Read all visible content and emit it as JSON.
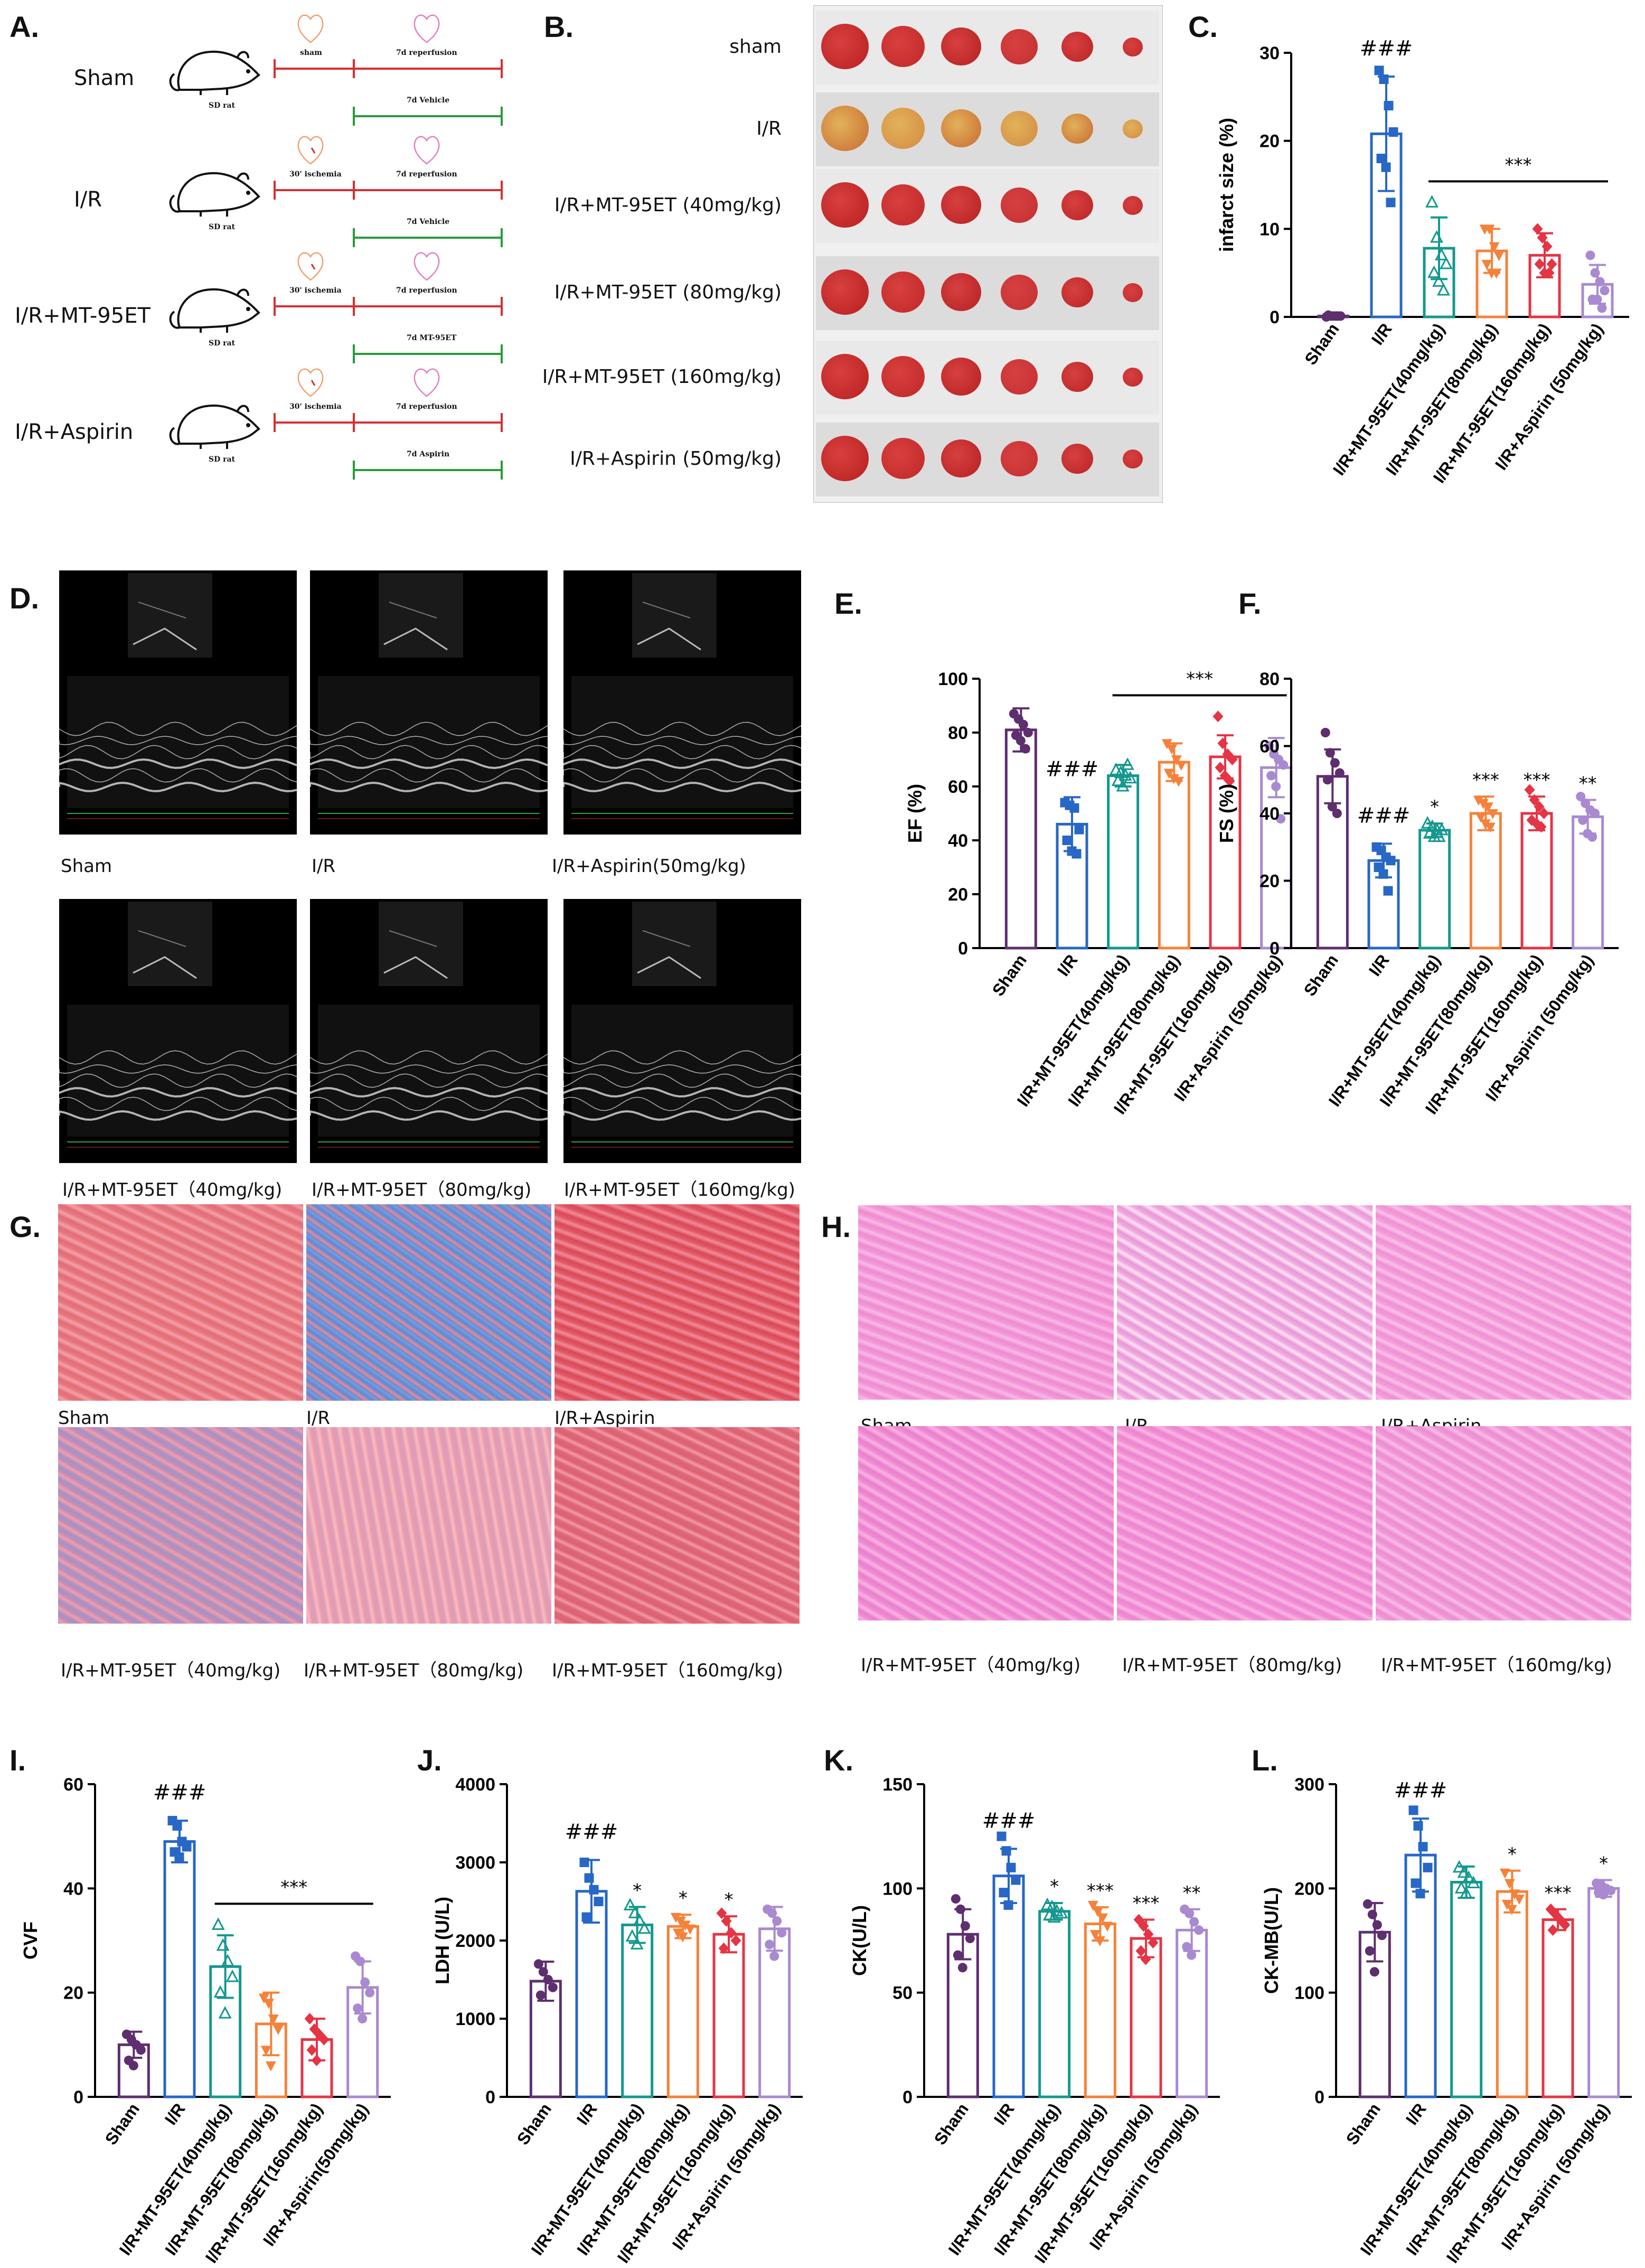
{
  "panel_letters": [
    "A.",
    "B.",
    "C.",
    "D.",
    "E.",
    "F.",
    "G.",
    "H.",
    "I.",
    "J.",
    "K.",
    "L."
  ],
  "panel_a": {
    "rows": [
      {
        "group": "Sham",
        "stage1": "sham",
        "stage2": "7d reperfusion",
        "treatment": "7d Vehicle",
        "rat": "SD rat"
      },
      {
        "group": "I/R",
        "stage1": "30' ischemia",
        "stage2": "7d reperfusion",
        "treatment": "7d Vehicle",
        "rat": "SD rat"
      },
      {
        "group": "I/R+MT-95ET",
        "stage1": "30' ischemia",
        "stage2": "7d reperfusion",
        "treatment": "7d MT-95ET",
        "rat": "SD rat"
      },
      {
        "group": "I/R+Aspirin",
        "stage1": "30' ischemia",
        "stage2": "7d reperfusion",
        "treatment": "7d Aspirin",
        "rat": "SD rat"
      }
    ]
  },
  "panel_b": {
    "labels": [
      "sham",
      "I/R",
      "I/R+MT-95ET (40mg/kg)",
      "I/R+MT-95ET (80mg/kg)",
      "I/R+MT-95ET (160mg/kg)",
      "I/R+Aspirin (50mg/kg)"
    ]
  },
  "panel_d": {
    "labels": [
      "Sham",
      "I/R",
      "I/R+Aspirin(50mg/kg)",
      "I/R+MT-95ET（40mg/kg)",
      "I/R+MT-95ET（80mg/kg)",
      "I/R+MT-95ET（160mg/kg)"
    ]
  },
  "panel_g": {
    "labels": [
      "Sham",
      "I/R",
      "I/R+Aspirin",
      "I/R+MT-95ET（40mg/kg)",
      "I/R+MT-95ET（80mg/kg)",
      "I/R+MT-95ET（160mg/kg)"
    ]
  },
  "panel_h": {
    "labels": [
      "Sham",
      "I/R",
      "I/R+Aspirin",
      "I/R+MT-95ET（40mg/kg)",
      "I/R+MT-95ET（80mg/kg)",
      "I/R+MT-95ET（160mg/kg)"
    ]
  },
  "colors": {
    "Sham": "#5e2e6e",
    "I/R": "#2767c6",
    "MT40": "#14988e",
    "MT80": "#f5823a",
    "MT160": "#e53444",
    "Aspirin": "#a98ad0"
  },
  "chart_data": [
    {
      "id": "C",
      "type": "bar",
      "ylabel": "infarct size (%)",
      "ylim": [
        0,
        30
      ],
      "yticks": [
        0,
        10,
        20,
        30
      ],
      "categories": [
        "Sham",
        "I/R",
        "I/R+MT-95ET(40mg/kg)",
        "I/R+MT-95ET(80mg/kg)",
        "I/R+MT-95ET(160mg/kg)",
        "I/R+Aspirin (50mg/kg)"
      ],
      "values": [
        0.1,
        20.8,
        7.8,
        7.5,
        7.0,
        3.7
      ],
      "errors": [
        0.05,
        6.5,
        3.5,
        2.5,
        2.5,
        2.2
      ],
      "points": [
        [
          0,
          0.1,
          0.1,
          0.1,
          0.2,
          0.1,
          0.1
        ],
        [
          28,
          27,
          24,
          21,
          18,
          17,
          13
        ],
        [
          13,
          9,
          7,
          6,
          5,
          4,
          3
        ],
        [
          10,
          10,
          8,
          7,
          6,
          5,
          5
        ],
        [
          10,
          9,
          8,
          6,
          6,
          5,
          5
        ],
        [
          7,
          5,
          4,
          3,
          2,
          2,
          1
        ]
      ],
      "markers": [
        "circle",
        "square",
        "triangle",
        "inv-triangle",
        "diamond",
        "circle"
      ],
      "annotations": [
        {
          "bar": 1,
          "text": "###"
        }
      ],
      "bracket": {
        "from": 2,
        "to": 5,
        "text": "***"
      }
    },
    {
      "id": "E",
      "type": "bar",
      "ylabel": "EF (%)",
      "ylim": [
        0,
        100
      ],
      "yticks": [
        0,
        20,
        40,
        60,
        80,
        100
      ],
      "categories": [
        "Sham",
        "I/R",
        "I/R+MT-95ET(40mg/kg)",
        "I/R+MT-95ET(80mg/kg)",
        "I/R+MT-95ET(160mg/kg)",
        "I/R+Aspirin (50mg/kg)"
      ],
      "values": [
        81,
        46,
        64,
        69,
        71,
        67
      ],
      "errors": [
        8,
        10,
        4,
        7,
        8,
        11
      ],
      "points": [
        [
          87,
          85,
          83,
          80,
          79,
          77,
          74
        ],
        [
          54,
          53,
          52,
          44,
          40,
          36,
          35
        ],
        [
          66,
          65,
          64,
          63,
          62,
          60,
          68
        ],
        [
          76,
          74,
          70,
          68,
          65,
          63,
          62
        ],
        [
          86,
          76,
          72,
          70,
          67,
          64,
          62
        ],
        [
          75,
          72,
          70,
          68,
          64,
          60,
          48
        ]
      ],
      "markers": [
        "circle",
        "square",
        "triangle",
        "inv-triangle",
        "diamond",
        "circle"
      ],
      "annotations": [
        {
          "bar": 1,
          "text": "###"
        }
      ],
      "bracket": {
        "from": 2,
        "to": 5,
        "text": "***"
      }
    },
    {
      "id": "F",
      "type": "bar",
      "ylabel": "FS (%)",
      "ylim": [
        0,
        80
      ],
      "yticks": [
        0,
        20,
        40,
        60,
        80
      ],
      "categories": [
        "Sham",
        "I/R",
        "I/R+MT-95ET(40mg/kg)",
        "I/R+MT-95ET(80mg/kg)",
        "I/R+MT-95ET(160mg/kg)",
        "I/R+Aspirin (50mg/kg)"
      ],
      "values": [
        51,
        26,
        35,
        40,
        40,
        39
      ],
      "errors": [
        8,
        5,
        2,
        5,
        5,
        5
      ],
      "points": [
        [
          64,
          58,
          55,
          52,
          50,
          42,
          40
        ],
        [
          30,
          29,
          27,
          26,
          24,
          22,
          17
        ],
        [
          37,
          36,
          35,
          35,
          34,
          33,
          33
        ],
        [
          44,
          43,
          42,
          40,
          39,
          37,
          36
        ],
        [
          47,
          44,
          42,
          40,
          38,
          37,
          36
        ],
        [
          45,
          43,
          41,
          40,
          38,
          34,
          33
        ]
      ],
      "markers": [
        "circle",
        "square",
        "triangle",
        "inv-triangle",
        "diamond",
        "circle"
      ],
      "annotations": [
        {
          "bar": 1,
          "text": "###"
        },
        {
          "bar": 2,
          "text": "*"
        },
        {
          "bar": 3,
          "text": "***"
        },
        {
          "bar": 4,
          "text": "***"
        },
        {
          "bar": 5,
          "text": "**"
        }
      ]
    },
    {
      "id": "I",
      "type": "bar",
      "ylabel": "CVF",
      "ylim": [
        0,
        60
      ],
      "yticks": [
        0,
        20,
        40,
        60
      ],
      "categories": [
        "Sham",
        "I/R",
        "I/R+MT-95ET(40mg/kg)",
        "I/R+MT-95ET(80mg/kg)",
        "I/R+MT-95ET(160mg/kg)",
        "I/R+Aspirin(50mg/kg)"
      ],
      "values": [
        10,
        49,
        25,
        14,
        11,
        21
      ],
      "errors": [
        2.5,
        4,
        6,
        6,
        4,
        5
      ],
      "points": [
        [
          12,
          11,
          10,
          9,
          7,
          6
        ],
        [
          53,
          52,
          49,
          48,
          47,
          46
        ],
        [
          33,
          29,
          26,
          23,
          20,
          16
        ],
        [
          19,
          18,
          15,
          13,
          9,
          6
        ],
        [
          15,
          13,
          12,
          11,
          9,
          7
        ],
        [
          27,
          26,
          22,
          20,
          17,
          15
        ]
      ],
      "markers": [
        "circle",
        "square",
        "triangle",
        "inv-triangle",
        "diamond",
        "circle"
      ],
      "annotations": [
        {
          "bar": 1,
          "text": "###"
        }
      ],
      "bracket": {
        "from": 2,
        "to": 5,
        "text": "***"
      }
    },
    {
      "id": "J",
      "type": "bar",
      "ylabel": "LDH (U/L)",
      "ylim": [
        0,
        4000
      ],
      "yticks": [
        0,
        1000,
        2000,
        3000,
        4000
      ],
      "categories": [
        "Sham",
        "I/R",
        "I/R+MT-95ET(40mg/kg)",
        "I/R+MT-95ET(80mg/kg)",
        "I/R+MT-95ET(160mg/kg)",
        "I/R+Aspirin (50mg/kg)"
      ],
      "values": [
        1480,
        2630,
        2200,
        2180,
        2080,
        2150
      ],
      "errors": [
        250,
        400,
        230,
        150,
        230,
        280
      ],
      "points": [
        [
          1700,
          1600,
          1500,
          1400,
          1300
        ],
        [
          3000,
          2800,
          2650,
          2500,
          2300
        ],
        [
          2450,
          2350,
          2250,
          2150,
          2050,
          1950
        ],
        [
          2300,
          2250,
          2200,
          2150,
          2100,
          2050
        ],
        [
          2350,
          2250,
          2100,
          2000,
          1900
        ],
        [
          2400,
          2350,
          2250,
          2100,
          1950,
          1800
        ]
      ],
      "markers": [
        "circle",
        "square",
        "triangle",
        "inv-triangle",
        "diamond",
        "circle"
      ],
      "annotations": [
        {
          "bar": 1,
          "text": "###"
        },
        {
          "bar": 2,
          "text": "*"
        },
        {
          "bar": 3,
          "text": "*"
        },
        {
          "bar": 4,
          "text": "*"
        }
      ]
    },
    {
      "id": "K",
      "type": "bar",
      "ylabel": "CK(U/L)",
      "ylim": [
        0,
        150
      ],
      "yticks": [
        0,
        50,
        100,
        150
      ],
      "categories": [
        "Sham",
        "I/R",
        "I/R+MT-95ET(40mg/kg)",
        "I/R+MT-95ET(80mg/kg)",
        "I/R+MT-95ET(160mg/kg)",
        "I/R+Aspirin (50mg/kg)"
      ],
      "values": [
        78,
        106,
        89,
        83,
        76,
        80
      ],
      "errors": [
        12,
        13,
        4,
        8,
        9,
        10
      ],
      "points": [
        [
          95,
          90,
          82,
          76,
          68,
          62
        ],
        [
          125,
          118,
          110,
          104,
          98,
          92
        ],
        [
          92,
          91,
          89,
          88,
          87,
          86
        ],
        [
          92,
          89,
          86,
          82,
          78,
          75
        ],
        [
          85,
          82,
          78,
          74,
          70,
          66
        ],
        [
          90,
          88,
          84,
          80,
          72,
          68
        ]
      ],
      "markers": [
        "circle",
        "square",
        "triangle",
        "inv-triangle",
        "diamond",
        "circle"
      ],
      "annotations": [
        {
          "bar": 1,
          "text": "###"
        },
        {
          "bar": 2,
          "text": "*"
        },
        {
          "bar": 3,
          "text": "***"
        },
        {
          "bar": 4,
          "text": "***"
        },
        {
          "bar": 5,
          "text": "**"
        }
      ]
    },
    {
      "id": "L",
      "type": "bar",
      "ylabel": "CK-MB(U/L)",
      "ylim": [
        0,
        300
      ],
      "yticks": [
        0,
        100,
        200,
        300
      ],
      "categories": [
        "Sham",
        "I/R",
        "I/R+MT-95ET(40mg/kg)",
        "I/R+MT-95ET(80mg/kg)",
        "I/R+MT-95ET(160mg/kg)",
        "I/R+Aspirin (50mg/kg)"
      ],
      "values": [
        158,
        232,
        206,
        197,
        170,
        200
      ],
      "errors": [
        28,
        35,
        15,
        20,
        10,
        8
      ],
      "points": [
        [
          185,
          175,
          165,
          155,
          140,
          120
        ],
        [
          275,
          260,
          240,
          220,
          205,
          195
        ],
        [
          220,
          215,
          210,
          205,
          200,
          195
        ],
        [
          215,
          205,
          195,
          190,
          185,
          180
        ],
        [
          180,
          175,
          170,
          165,
          160
        ],
        [
          205,
          203,
          200,
          198,
          196,
          194
        ]
      ],
      "markers": [
        "circle",
        "square",
        "triangle",
        "inv-triangle",
        "diamond",
        "circle"
      ],
      "annotations": [
        {
          "bar": 1,
          "text": "###"
        },
        {
          "bar": 3,
          "text": "*"
        },
        {
          "bar": 4,
          "text": "***"
        },
        {
          "bar": 5,
          "text": "*"
        }
      ]
    }
  ]
}
